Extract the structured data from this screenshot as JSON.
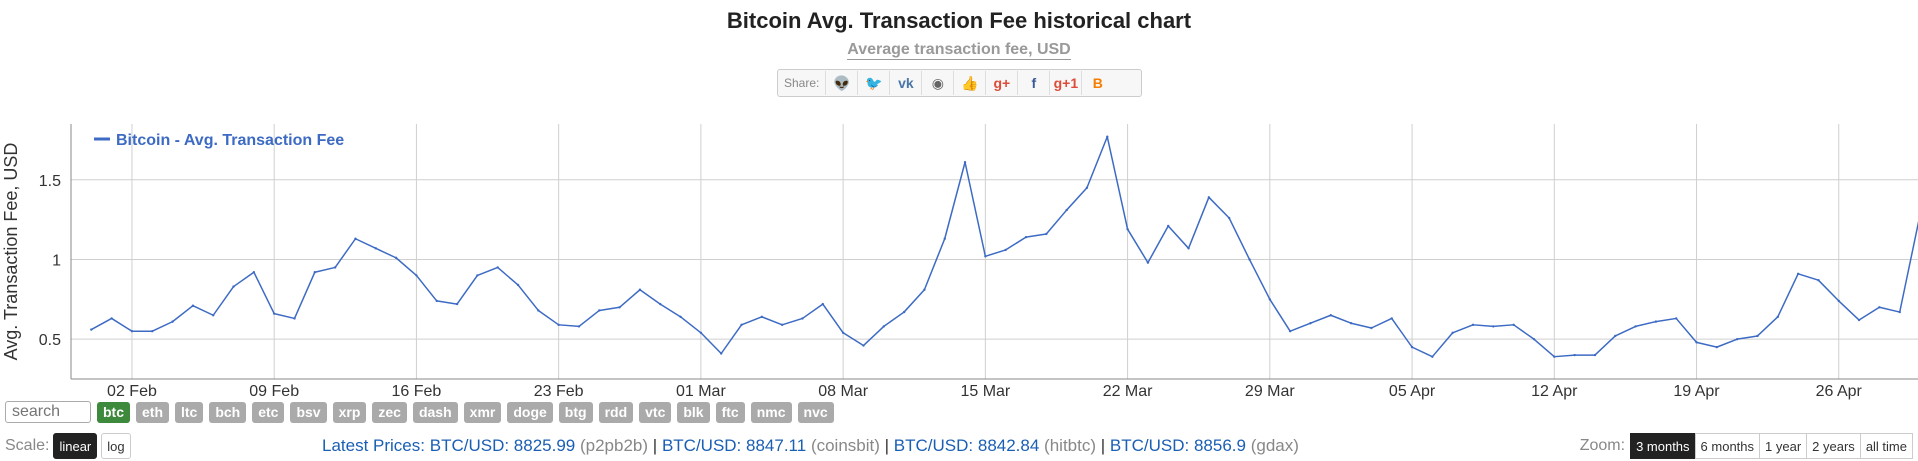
{
  "title": "Bitcoin Avg. Transaction Fee historical chart",
  "subtitle": "Average transaction fee, USD",
  "share": {
    "label": "Share:",
    "buttons": [
      {
        "icon": "reddit-icon",
        "glyph": "👽",
        "color": "#555"
      },
      {
        "icon": "twitter-icon",
        "glyph": "🐦",
        "color": "#1da1f2"
      },
      {
        "icon": "vk-icon",
        "glyph": "vk",
        "color": "#4a76a8"
      },
      {
        "icon": "weibo-icon",
        "glyph": "◉",
        "color": "#666"
      },
      {
        "icon": "like-icon",
        "glyph": "👍",
        "color": "#3b5998"
      },
      {
        "icon": "google-plus-icon",
        "glyph": "g+",
        "color": "#dd4b39"
      },
      {
        "icon": "facebook-icon",
        "glyph": "f",
        "color": "#3b5998"
      },
      {
        "icon": "google-plus-one-icon",
        "glyph": "g+1",
        "color": "#dd4b39"
      },
      {
        "icon": "blogger-icon",
        "glyph": "B",
        "color": "#f57d00"
      }
    ]
  },
  "chart_data": {
    "type": "line",
    "ylabel": "Avg. Transaction Fee, USD",
    "ylim": [
      0.25,
      1.85
    ],
    "y_ticks": [
      0.5,
      1,
      1.5
    ],
    "y_tick_labels": [
      "0.5",
      "1",
      "1.5"
    ],
    "x_tick_labels": [
      "02 Feb",
      "09 Feb",
      "16 Feb",
      "23 Feb",
      "01 Mar",
      "08 Mar",
      "15 Mar",
      "22 Mar",
      "29 Mar",
      "05 Apr",
      "12 Apr",
      "19 Apr",
      "26 Apr"
    ],
    "x_tick_days": [
      2,
      9,
      16,
      23,
      30,
      37,
      44,
      51,
      58,
      65,
      72,
      79,
      86
    ],
    "xlim": [
      -1,
      89.9
    ],
    "grid": true,
    "legend_position": "top-left",
    "color": "#3d6bc4",
    "series": [
      {
        "name": "Bitcoin - Avg. Transaction Fee",
        "values": [
          0.56,
          0.63,
          0.55,
          0.55,
          0.61,
          0.71,
          0.65,
          0.83,
          0.92,
          0.66,
          0.63,
          0.92,
          0.95,
          1.13,
          1.07,
          1.01,
          0.9,
          0.74,
          0.72,
          0.9,
          0.95,
          0.84,
          0.68,
          0.59,
          0.58,
          0.68,
          0.7,
          0.81,
          0.72,
          0.64,
          0.54,
          0.41,
          0.59,
          0.64,
          0.59,
          0.63,
          0.72,
          0.54,
          0.46,
          0.58,
          0.67,
          0.81,
          1.13,
          1.61,
          1.02,
          1.06,
          1.14,
          1.16,
          1.31,
          1.45,
          1.77,
          1.19,
          0.98,
          1.21,
          1.07,
          1.39,
          1.26,
          1.0,
          0.75,
          0.55,
          0.6,
          0.65,
          0.6,
          0.57,
          0.63,
          0.45,
          0.39,
          0.54,
          0.59,
          0.58,
          0.59,
          0.5,
          0.39,
          0.4,
          0.4,
          0.52,
          0.58,
          0.61,
          0.63,
          0.48,
          0.45,
          0.5,
          0.52,
          0.64,
          0.91,
          0.87,
          0.74,
          0.62,
          0.7,
          0.67,
          1.28
        ]
      }
    ]
  },
  "coins": [
    "btc",
    "eth",
    "ltc",
    "bch",
    "etc",
    "bsv",
    "xrp",
    "zec",
    "dash",
    "xmr",
    "doge",
    "btg",
    "rdd",
    "vtc",
    "blk",
    "ftc",
    "nmc",
    "nvc"
  ],
  "active_coin": "btc",
  "search": {
    "placeholder": "search"
  },
  "scale": {
    "label": "Scale:",
    "options": [
      "linear",
      "log"
    ],
    "active": "linear"
  },
  "prices": {
    "label": "Latest Prices:",
    "items": [
      {
        "pair": "BTC/USD: 8825.99",
        "source": "(p2pb2b)"
      },
      {
        "pair": "BTC/USD: 8847.11",
        "source": "(coinsbit)"
      },
      {
        "pair": "BTC/USD: 8842.84",
        "source": "(hitbtc)"
      },
      {
        "pair": "BTC/USD: 8856.9",
        "source": "(gdax)"
      }
    ],
    "separator": "|"
  },
  "zoom": {
    "label": "Zoom:",
    "options": [
      "3 months",
      "6 months",
      "1 year",
      "2 years",
      "all time"
    ],
    "active": "3 months"
  }
}
